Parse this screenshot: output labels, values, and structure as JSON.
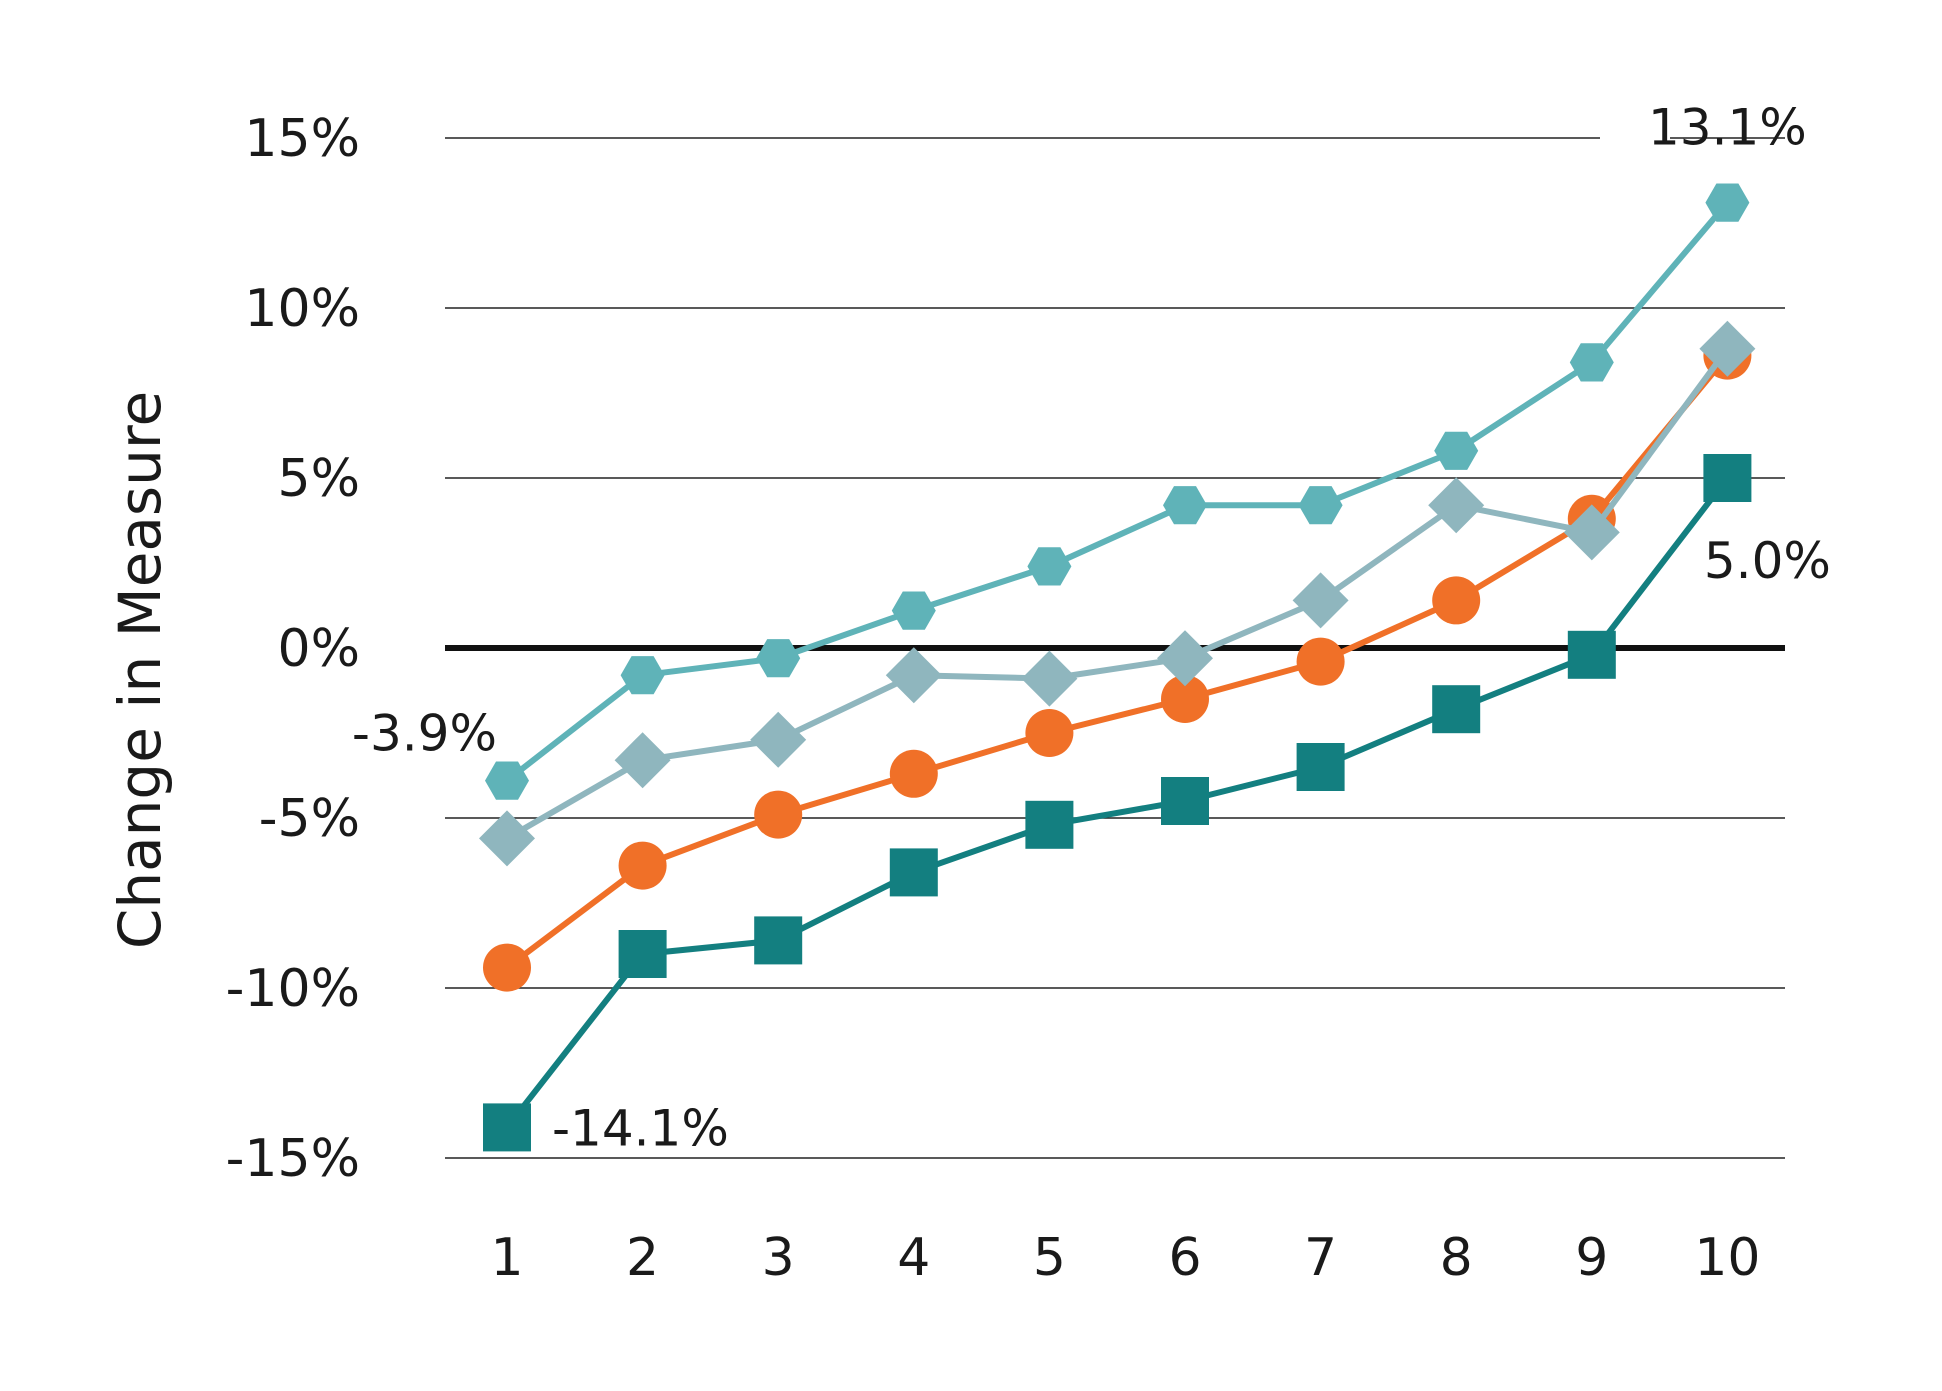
{
  "chart_data": {
    "type": "line",
    "ylabel": "Change in Measure",
    "xlabel": "",
    "categories": [
      "1",
      "2",
      "3",
      "4",
      "5",
      "6",
      "7",
      "8",
      "9",
      "10"
    ],
    "ylim": [
      -15,
      15
    ],
    "yticks": [
      15,
      10,
      5,
      0,
      -5,
      -10,
      -15
    ],
    "ytick_labels": [
      "15%",
      "10%",
      "5%",
      "0%",
      "-5%",
      "-10%",
      "-15%"
    ],
    "grid": true,
    "legend": "none",
    "series": [
      {
        "marker": "hexagon",
        "color": "#5fb3b8",
        "values": [
          -3.9,
          -0.8,
          -0.3,
          1.1,
          2.4,
          4.2,
          4.2,
          5.8,
          8.4,
          13.1
        ]
      },
      {
        "marker": "diamond",
        "color": "#8fb6be",
        "values": [
          -5.6,
          -3.3,
          -2.7,
          -0.8,
          -0.9,
          -0.3,
          1.4,
          4.2,
          3.4,
          8.8
        ]
      },
      {
        "marker": "circle",
        "color": "#f07028",
        "values": [
          -9.4,
          -6.4,
          -4.9,
          -3.7,
          -2.5,
          -1.5,
          -0.4,
          1.4,
          3.8,
          8.6
        ]
      },
      {
        "marker": "square",
        "color": "#137f80",
        "values": [
          -14.1,
          -9.0,
          -8.6,
          -6.6,
          -5.2,
          -4.5,
          -3.5,
          -1.8,
          -0.2,
          5.0
        ]
      }
    ],
    "annotations": [
      {
        "text": "13.1%",
        "x": "10",
        "series": 0
      },
      {
        "text": "-3.9%",
        "x": "1",
        "series": 0
      },
      {
        "text": "5.0%",
        "x": "10",
        "series": 3
      },
      {
        "text": "-14.1%",
        "x": "1",
        "series": 3
      }
    ],
    "zero_line_color": "#111111",
    "grid_color": "#222222"
  }
}
